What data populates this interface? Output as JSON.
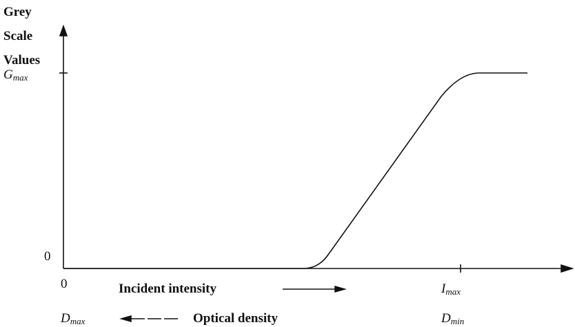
{
  "y_axis": {
    "label_lines": [
      "Grey",
      "Scale",
      "Values"
    ],
    "max_label": {
      "main": "G",
      "sub": "max"
    },
    "zero_label": "0"
  },
  "x_axis": {
    "zero_label": "0",
    "intensity_label": "Incident intensity",
    "max_label": {
      "main": "I",
      "sub": "max"
    },
    "density_left": {
      "main": "D",
      "sub": "max"
    },
    "density_label": "Optical density",
    "density_right": {
      "main": "D",
      "sub": "min"
    }
  }
}
